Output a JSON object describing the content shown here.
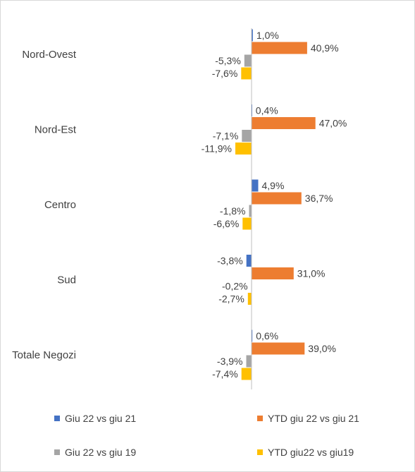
{
  "chart_data": {
    "type": "bar",
    "orientation": "horizontal",
    "categories": [
      "Nord-Ovest",
      "Nord-Est",
      "Centro",
      "Sud",
      "Totale Negozi"
    ],
    "series": [
      {
        "name": "Giu 22 vs giu 21",
        "color": "#4472c4",
        "values": [
          1.0,
          0.4,
          4.9,
          -3.8,
          0.6
        ],
        "labels": [
          "1,0%",
          "0,4%",
          "4,9%",
          "-3,8%",
          "0,6%"
        ]
      },
      {
        "name": "YTD giu 22 vs giu 21",
        "color": "#ed7d31",
        "values": [
          40.9,
          47.0,
          36.7,
          31.0,
          39.0
        ],
        "labels": [
          "40,9%",
          "47,0%",
          "36,7%",
          "31,0%",
          "39,0%"
        ]
      },
      {
        "name": "Giu 22 vs giu 19",
        "color": "#a5a5a5",
        "values": [
          -5.3,
          -7.1,
          -1.8,
          -0.2,
          -3.9
        ],
        "labels": [
          "-5,3%",
          "-7,1%",
          "-1,8%",
          "-0,2%",
          "-3,9%"
        ]
      },
      {
        "name": "YTD giu22 vs giu19",
        "color": "#ffc000",
        "values": [
          -7.6,
          -11.9,
          -6.6,
          -2.7,
          -7.4
        ],
        "labels": [
          "-7,6%",
          "-11,9%",
          "-6,6%",
          "-2,7%",
          "-7,4%"
        ]
      }
    ],
    "axis_color": "#bfbfbf",
    "grid": false,
    "legend_position": "bottom"
  }
}
